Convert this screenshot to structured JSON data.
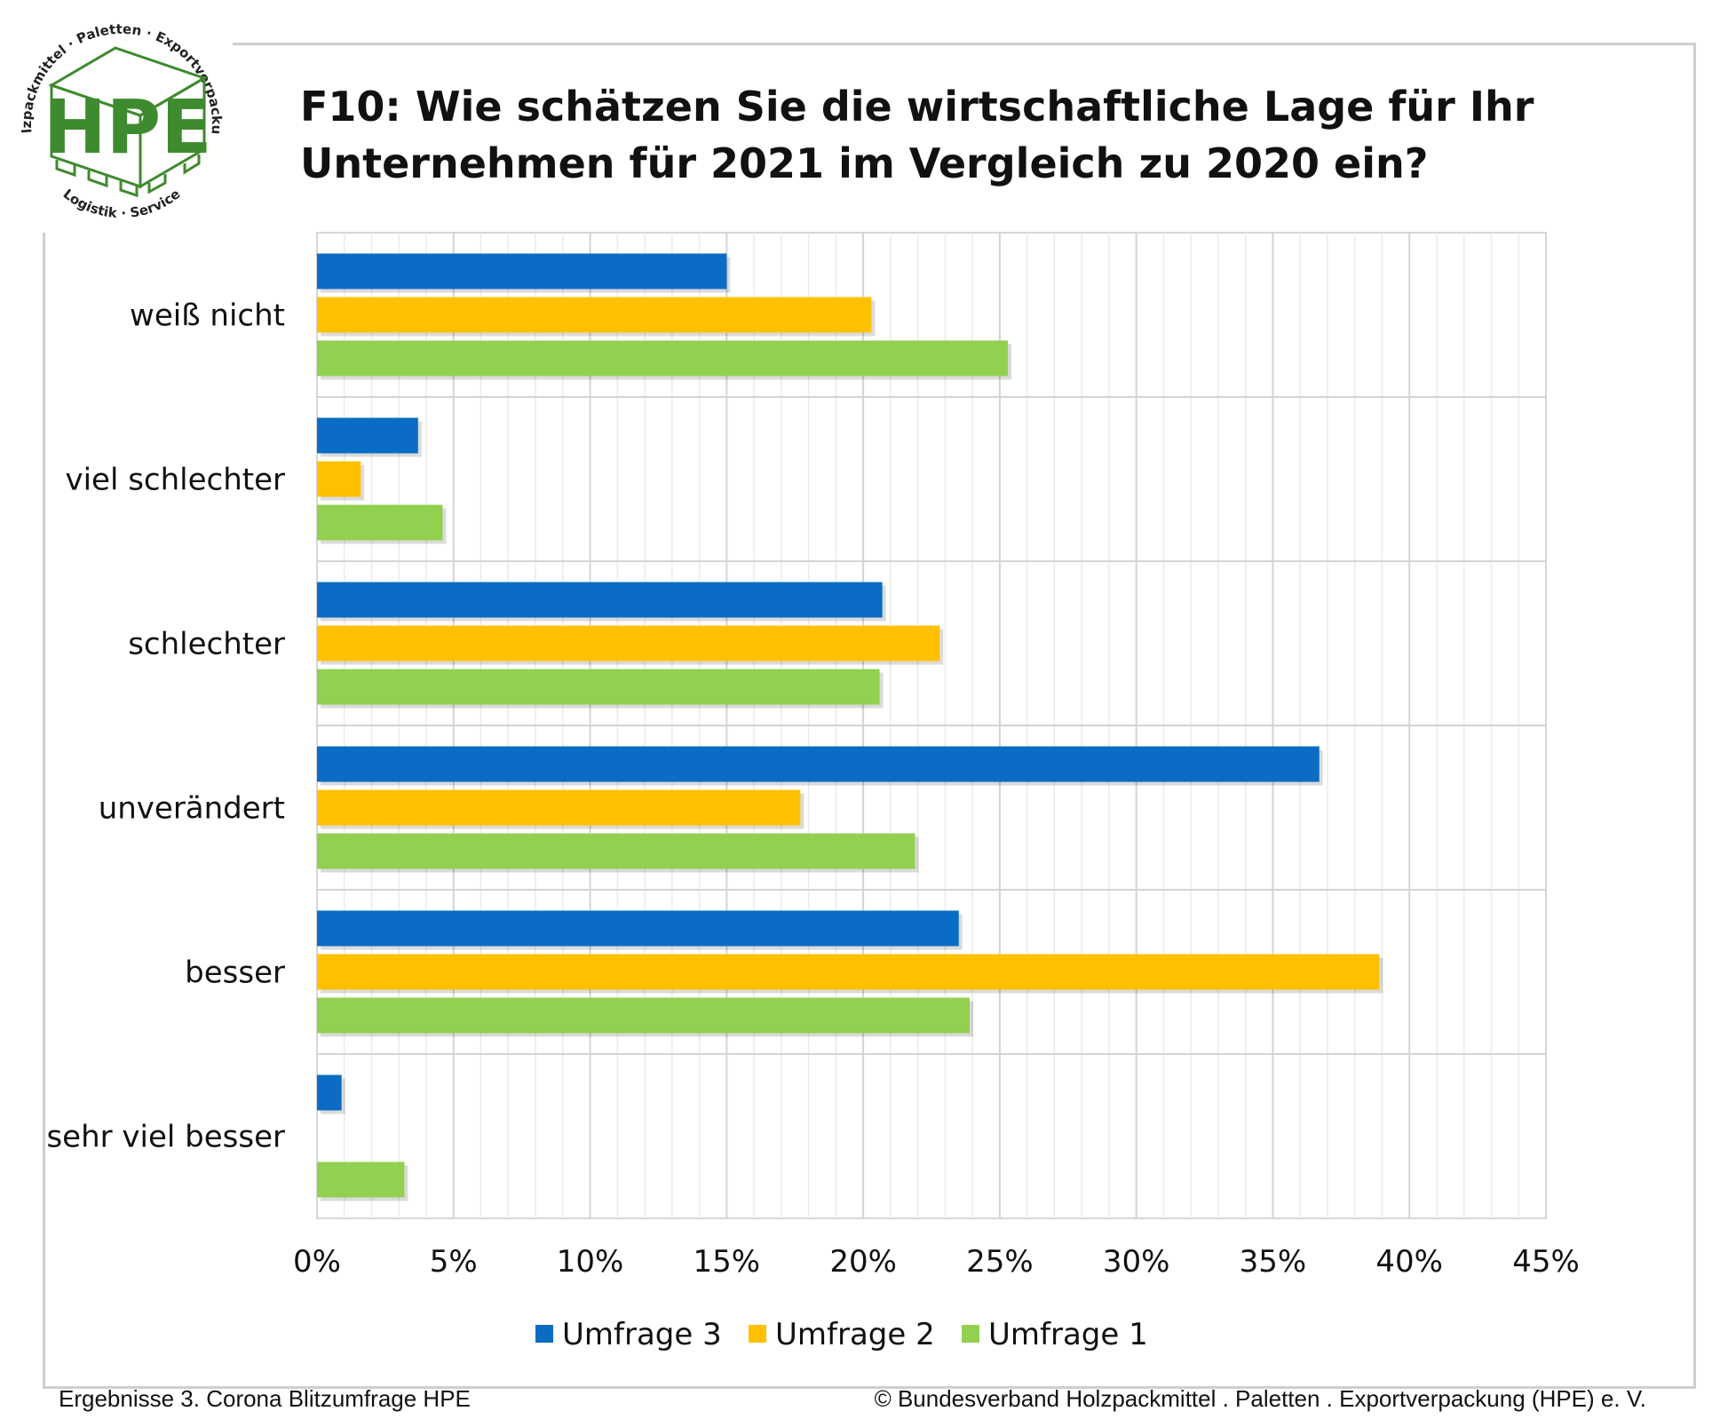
{
  "logo": {
    "letters": "HPE",
    "ring_top": "Holzpackmittel · Paletten · Exportverpackung",
    "ring_bottom": "Logistik · Service",
    "color": "#3e8a2e"
  },
  "chart_data": {
    "type": "bar",
    "orientation": "horizontal",
    "title": "F10: Wie schätzen Sie die wirtschaftliche Lage für Ihr Unternehmen für 2021 im Vergleich zu 2020 ein?",
    "categories": [
      "weiß nicht",
      "viel schlechter",
      "schlechter",
      "unverändert",
      "besser",
      "sehr viel besser"
    ],
    "series": [
      {
        "name": "Umfrage 3",
        "color": "#0a6cc4",
        "values": [
          15.0,
          3.7,
          20.7,
          36.7,
          23.5,
          0.9
        ]
      },
      {
        "name": "Umfrage 2",
        "color": "#ffc000",
        "values": [
          20.3,
          1.6,
          22.8,
          17.7,
          38.9,
          0.0
        ]
      },
      {
        "name": "Umfrage 1",
        "color": "#92d050",
        "values": [
          25.3,
          4.6,
          20.6,
          21.9,
          23.9,
          3.2
        ]
      }
    ],
    "xlim": [
      0,
      45
    ],
    "xticks": [
      "0%",
      "5%",
      "10%",
      "15%",
      "20%",
      "25%",
      "30%",
      "35%",
      "40%",
      "45%"
    ],
    "x_unit": "%",
    "grid": true,
    "legend_position": "bottom"
  },
  "footer": {
    "left": "Ergebnisse 3. Corona Blitzumfrage HPE",
    "right": "© Bundesverband Holzpackmittel . Paletten . Exportverpackung (HPE) e. V."
  }
}
